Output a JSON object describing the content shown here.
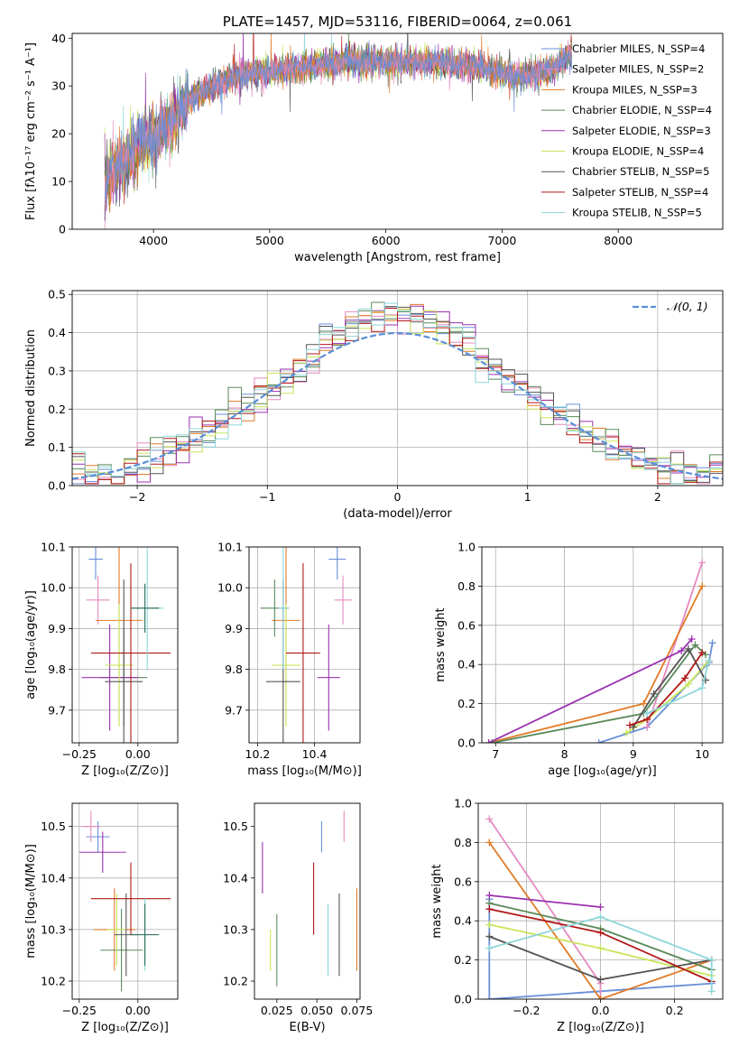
{
  "chart_data": [
    {
      "id": "spectrum",
      "type": "line",
      "title": "PLATE=1457, MJD=53116, FIBERID=0064, z=0.061",
      "xlabel": "wavelength [Angstrom, rest frame]",
      "ylabel": "Flux [fλ10⁻¹⁷ erg cm⁻² s⁻¹ A⁻¹]",
      "xlim": [
        3300,
        8900
      ],
      "ylim": [
        0,
        41
      ],
      "xticks": [
        4000,
        5000,
        6000,
        7000,
        8000
      ],
      "yticks": [
        0,
        10,
        20,
        30,
        40
      ],
      "grid": false,
      "legend": "right",
      "data_x_range": [
        3580,
        7600
      ],
      "continuum": {
        "x": [
          3580,
          3700,
          3900,
          4100,
          4300,
          4500,
          4700,
          5000,
          5300,
          5600,
          6000,
          6400,
          6800,
          7100,
          7400,
          7600
        ],
        "y": [
          10,
          13,
          18,
          21,
          27,
          30,
          32,
          33,
          34,
          35,
          35,
          35,
          34,
          32,
          33,
          37
        ]
      },
      "series": [
        {
          "name": "Chabrier MILES, N_SSP=4",
          "color": "#6a8fd8"
        },
        {
          "name": "Salpeter MILES, N_SSP=2",
          "color": "#e58ac0"
        },
        {
          "name": "Kroupa MILES, N_SSP=3",
          "color": "#e07b27"
        },
        {
          "name": "Chabrier ELODIE, N_SSP=4",
          "color": "#5a8a5a"
        },
        {
          "name": "Salpeter ELODIE, N_SSP=3",
          "color": "#9a30b0"
        },
        {
          "name": "Kroupa ELODIE, N_SSP=4",
          "color": "#c8e65a"
        },
        {
          "name": "Chabrier STELIB, N_SSP=5",
          "color": "#555555"
        },
        {
          "name": "Salpeter STELIB, N_SSP=4",
          "color": "#b01818"
        },
        {
          "name": "Kroupa STELIB, N_SSP=5",
          "color": "#8ed6d8"
        }
      ]
    },
    {
      "id": "residuals",
      "type": "line",
      "xlabel": "(data-model)/error",
      "ylabel": "Normed distribution",
      "xlim": [
        -2.5,
        2.5
      ],
      "ylim": [
        0,
        0.51
      ],
      "xticks": [
        -2,
        -1,
        0,
        1,
        2
      ],
      "yticks": [
        0.0,
        0.1,
        0.2,
        0.3,
        0.4,
        0.5
      ],
      "grid": true,
      "legend": "top-right",
      "reference": {
        "name": "𝒩(0, 1)",
        "color": "#5a8fd8",
        "mean": 0,
        "sigma": 1
      },
      "bin_width": 0.1
    },
    {
      "id": "z-age",
      "type": "scatter",
      "xlabel": "Z [log₁₀(Z/Z⊙)]",
      "ylabel": "age  [log₁₀(age/yr)]",
      "xlim": [
        -0.28,
        0.17
      ],
      "ylim": [
        9.62,
        10.1
      ],
      "xticks": [
        -0.25,
        0.0
      ],
      "yticks": [
        9.7,
        9.8,
        9.9,
        10.0,
        10.1
      ],
      "grid": true,
      "points": [
        {
          "x": -0.18,
          "xerr": 0.03,
          "y": 10.07,
          "yerr": 0.05,
          "color": "#6a8fd8"
        },
        {
          "x": -0.17,
          "xerr": 0.05,
          "y": 9.97,
          "yerr": 0.06,
          "color": "#e58ac0"
        },
        {
          "x": -0.08,
          "xerr": 0.1,
          "y": 9.92,
          "yerr": 0.25,
          "color": "#e07b27"
        },
        {
          "x": -0.06,
          "xerr": 0.1,
          "y": 9.78,
          "yerr": 0.12,
          "color": "#5a8a5a"
        },
        {
          "x": -0.12,
          "xerr": 0.12,
          "y": 9.78,
          "yerr": 0.13,
          "color": "#9a30b0"
        },
        {
          "x": -0.08,
          "xerr": 0.06,
          "y": 9.81,
          "yerr": 0.15,
          "color": "#c8e65a"
        },
        {
          "x": -0.06,
          "xerr": 0.08,
          "y": 9.77,
          "yerr": 0.25,
          "color": "#555555"
        },
        {
          "x": -0.03,
          "xerr": 0.17,
          "y": 9.84,
          "yerr": 0.22,
          "color": "#b01818"
        },
        {
          "x": 0.04,
          "xerr": 0.07,
          "y": 9.95,
          "yerr": 0.15,
          "color": "#8ed6d8"
        },
        {
          "x": 0.03,
          "xerr": 0.06,
          "y": 9.95,
          "yerr": 0.06,
          "color": "#2a6a5a"
        }
      ]
    },
    {
      "id": "mass-age",
      "type": "scatter",
      "xlabel": "mass [log₁₀(M/M⊙)]",
      "ylabel": "",
      "xlim": [
        10.17,
        10.56
      ],
      "ylim": [
        9.62,
        10.1
      ],
      "xticks": [
        10.2,
        10.4
      ],
      "yticks": [
        9.7,
        9.8,
        9.9,
        10.0,
        10.1
      ],
      "grid": true,
      "points": [
        {
          "x": 10.48,
          "xerr": 0.03,
          "y": 10.07,
          "yerr": 0.05,
          "color": "#6a8fd8"
        },
        {
          "x": 10.5,
          "xerr": 0.03,
          "y": 9.97,
          "yerr": 0.06,
          "color": "#e58ac0"
        },
        {
          "x": 10.3,
          "xerr": 0.05,
          "y": 9.92,
          "yerr": 0.25,
          "color": "#e07b27"
        },
        {
          "x": 10.26,
          "xerr": 0.05,
          "y": 9.95,
          "yerr": 0.07,
          "color": "#5a8a5a"
        },
        {
          "x": 10.45,
          "xerr": 0.04,
          "y": 9.78,
          "yerr": 0.13,
          "color": "#9a30b0"
        },
        {
          "x": 10.3,
          "xerr": 0.05,
          "y": 9.81,
          "yerr": 0.15,
          "color": "#c8e65a"
        },
        {
          "x": 10.29,
          "xerr": 0.06,
          "y": 9.77,
          "yerr": 0.25,
          "color": "#555555"
        },
        {
          "x": 10.36,
          "xerr": 0.06,
          "y": 9.84,
          "yerr": 0.22,
          "color": "#b01818"
        },
        {
          "x": 10.29,
          "xerr": 0.02,
          "y": 9.95,
          "yerr": 0.15,
          "color": "#8ed6d8"
        }
      ]
    },
    {
      "id": "age-weight",
      "type": "line",
      "xlabel": "age  [log₁₀(age/yr)]",
      "ylabel": "mass weight",
      "xlim": [
        6.8,
        10.3
      ],
      "ylim": [
        0,
        1.0
      ],
      "xticks": [
        7,
        8,
        9,
        10
      ],
      "yticks": [
        0.0,
        0.2,
        0.4,
        0.6,
        0.8,
        1.0
      ],
      "grid": true,
      "series": [
        {
          "color": "#6a8fd8",
          "x": [
            8.5,
            9.2,
            10.1,
            10.15
          ],
          "y": [
            0.0,
            0.08,
            0.41,
            0.51
          ]
        },
        {
          "color": "#e58ac0",
          "x": [
            9.2,
            10.0
          ],
          "y": [
            0.08,
            0.92
          ]
        },
        {
          "color": "#e07b27",
          "x": [
            6.9,
            9.15,
            10.0
          ],
          "y": [
            0.0,
            0.2,
            0.8
          ]
        },
        {
          "color": "#5a8a5a",
          "x": [
            6.95,
            9.15,
            9.9,
            10.05
          ],
          "y": [
            0.0,
            0.15,
            0.5,
            0.45
          ]
        },
        {
          "color": "#9a30b0",
          "x": [
            6.9,
            9.7,
            9.85
          ],
          "y": [
            0.0,
            0.47,
            0.53
          ]
        },
        {
          "color": "#c8e65a",
          "x": [
            8.9,
            9.2,
            9.8,
            10.1
          ],
          "y": [
            0.05,
            0.12,
            0.3,
            0.42
          ]
        },
        {
          "color": "#555555",
          "x": [
            9.0,
            9.3,
            9.8,
            10.05
          ],
          "y": [
            0.08,
            0.25,
            0.48,
            0.32
          ]
        },
        {
          "color": "#b01818",
          "x": [
            8.95,
            9.2,
            9.75,
            10.0
          ],
          "y": [
            0.09,
            0.12,
            0.33,
            0.46
          ]
        },
        {
          "color": "#8ed6d8",
          "x": [
            9.2,
            10.0,
            10.1
          ],
          "y": [
            0.15,
            0.28,
            0.42
          ]
        }
      ]
    },
    {
      "id": "z-mass",
      "type": "scatter",
      "xlabel": "Z [log₁₀(Z/Z⊙)]",
      "ylabel": "mass [log₁₀(M/M⊙)]",
      "xlim": [
        -0.28,
        0.17
      ],
      "ylim": [
        10.165,
        10.545
      ],
      "xticks": [
        -0.25,
        0.0
      ],
      "yticks": [
        10.2,
        10.3,
        10.4,
        10.5
      ],
      "grid": true,
      "points": [
        {
          "x": -0.17,
          "xerr": 0.05,
          "y": 10.48,
          "yerr": 0.03,
          "color": "#6a8fd8"
        },
        {
          "x": -0.2,
          "xerr": 0.04,
          "y": 10.5,
          "yerr": 0.03,
          "color": "#e58ac0"
        },
        {
          "x": -0.1,
          "xerr": 0.09,
          "y": 10.3,
          "yerr": 0.08,
          "color": "#e07b27"
        },
        {
          "x": -0.07,
          "xerr": 0.09,
          "y": 10.26,
          "yerr": 0.08,
          "color": "#5a8a5a"
        },
        {
          "x": -0.15,
          "xerr": 0.1,
          "y": 10.45,
          "yerr": 0.04,
          "color": "#9a30b0"
        },
        {
          "x": -0.09,
          "xerr": 0.04,
          "y": 10.3,
          "yerr": 0.07,
          "color": "#c8e65a"
        },
        {
          "x": -0.05,
          "xerr": 0.05,
          "y": 10.29,
          "yerr": 0.08,
          "color": "#555555"
        },
        {
          "x": -0.03,
          "xerr": 0.17,
          "y": 10.36,
          "yerr": 0.07,
          "color": "#b01818"
        },
        {
          "x": 0.03,
          "xerr": 0.05,
          "y": 10.29,
          "yerr": 0.07,
          "color": "#8ed6d8"
        },
        {
          "x": 0.03,
          "xerr": 0.06,
          "y": 10.29,
          "yerr": 0.06,
          "color": "#2a6a5a"
        }
      ]
    },
    {
      "id": "ebv-mass",
      "type": "scatter",
      "xlabel": "E(B-V)",
      "ylabel": "",
      "xlim": [
        0.011,
        0.077
      ],
      "ylim": [
        10.165,
        10.545
      ],
      "xticks": [
        0.025,
        0.05,
        0.075
      ],
      "yticks": [
        10.2,
        10.3,
        10.4,
        10.5
      ],
      "grid": false,
      "points": [
        {
          "x": 0.053,
          "xerr": 0,
          "y": 10.48,
          "yerr": 0.03,
          "color": "#6a8fd8"
        },
        {
          "x": 0.067,
          "xerr": 0,
          "y": 10.5,
          "yerr": 0.03,
          "color": "#e58ac0"
        },
        {
          "x": 0.075,
          "xerr": 0,
          "y": 10.3,
          "yerr": 0.08,
          "color": "#e07b27"
        },
        {
          "x": 0.025,
          "xerr": 0,
          "y": 10.26,
          "yerr": 0.07,
          "color": "#5a8a5a"
        },
        {
          "x": 0.016,
          "xerr": 0,
          "y": 10.42,
          "yerr": 0.05,
          "color": "#9a30b0"
        },
        {
          "x": 0.021,
          "xerr": 0,
          "y": 10.26,
          "yerr": 0.04,
          "color": "#c8e65a"
        },
        {
          "x": 0.064,
          "xerr": 0,
          "y": 10.29,
          "yerr": 0.08,
          "color": "#555555"
        },
        {
          "x": 0.048,
          "xerr": 0,
          "y": 10.36,
          "yerr": 0.07,
          "color": "#b01818"
        },
        {
          "x": 0.057,
          "xerr": 0,
          "y": 10.28,
          "yerr": 0.07,
          "color": "#8ed6d8"
        }
      ]
    },
    {
      "id": "z-weight",
      "type": "line",
      "xlabel": "Z [log₁₀(Z/Z⊙)]",
      "ylabel": "mass weight",
      "xlim": [
        -0.33,
        0.33
      ],
      "ylim": [
        0,
        1.0
      ],
      "xticks": [
        -0.2,
        0.0,
        0.2
      ],
      "yticks": [
        0.0,
        0.2,
        0.4,
        0.6,
        0.8,
        1.0
      ],
      "grid": true,
      "series": [
        {
          "color": "#6a8fd8",
          "x": [
            -0.3,
            -0.3,
            0.3,
            0.3
          ],
          "y": [
            0.51,
            0.0,
            0.08,
            0.09
          ]
        },
        {
          "color": "#e58ac0",
          "x": [
            -0.3,
            0.0,
            0.0
          ],
          "y": [
            0.92,
            0.08,
            0.0
          ]
        },
        {
          "color": "#e07b27",
          "x": [
            -0.3,
            0.0,
            0.3
          ],
          "y": [
            0.8,
            0.0,
            0.2
          ]
        },
        {
          "color": "#5a8a5a",
          "x": [
            -0.3,
            0.0,
            0.3
          ],
          "y": [
            0.49,
            0.36,
            0.15
          ]
        },
        {
          "color": "#9a30b0",
          "x": [
            -0.3,
            0.0
          ],
          "y": [
            0.53,
            0.47
          ]
        },
        {
          "color": "#c8e65a",
          "x": [
            -0.3,
            0.0,
            0.3
          ],
          "y": [
            0.38,
            0.26,
            0.12
          ]
        },
        {
          "color": "#555555",
          "x": [
            -0.3,
            0.0,
            0.3
          ],
          "y": [
            0.32,
            0.1,
            0.2
          ]
        },
        {
          "color": "#b01818",
          "x": [
            -0.3,
            0.0,
            0.3
          ],
          "y": [
            0.46,
            0.34,
            0.09
          ]
        },
        {
          "color": "#8ed6d8",
          "x": [
            -0.3,
            0.0,
            0.3,
            0.3
          ],
          "y": [
            0.26,
            0.42,
            0.2,
            0.04
          ]
        }
      ]
    }
  ]
}
